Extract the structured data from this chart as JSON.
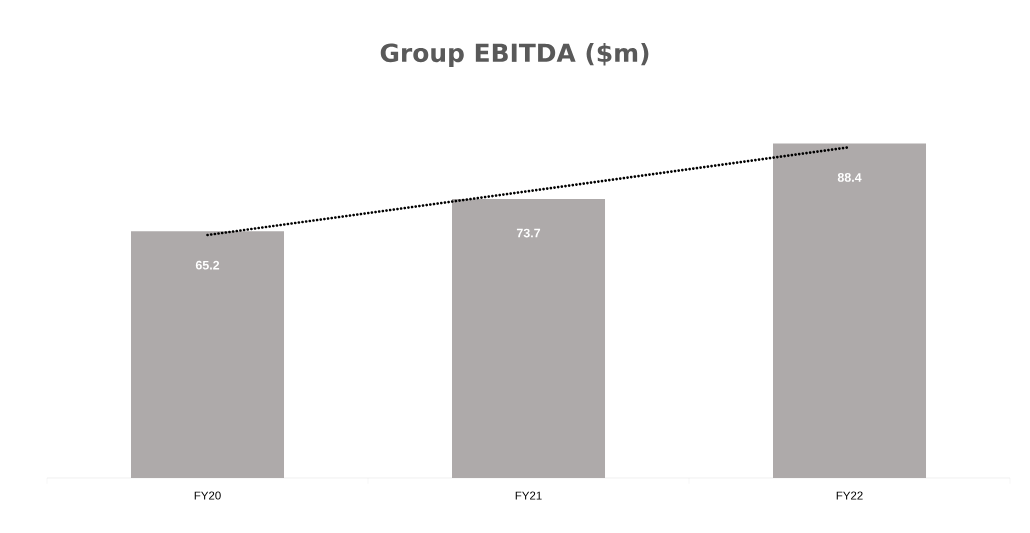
{
  "chart_data": {
    "type": "bar",
    "title": "Group EBITDA ($m)",
    "categories": [
      "FY20",
      "FY21",
      "FY22"
    ],
    "series": [
      {
        "color": "#aeaaaa",
        "values": [
          65.2,
          73.7,
          88.4
        ],
        "value_labels": [
          "65.2",
          "73.7",
          "88.4"
        ]
      },
      {
        "type": "line",
        "color": "#000000",
        "line_style": "dotted",
        "values": [
          64.2,
          75.8,
          87.4
        ]
      }
    ]
  }
}
